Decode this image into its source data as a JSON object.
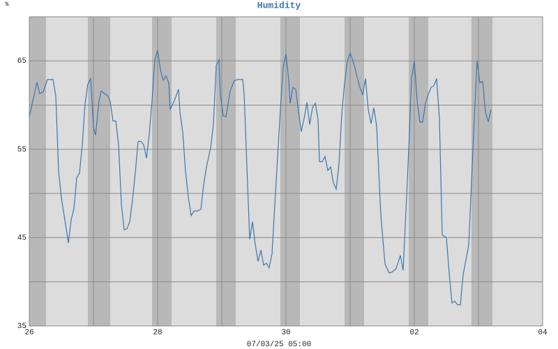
{
  "chart_data": {
    "type": "line",
    "title": "Humidity",
    "y_label": "%",
    "x_label": "07/03/25 05:00",
    "xlim": [
      0,
      8
    ],
    "xticks": [
      {
        "value": 0,
        "label": "26"
      },
      {
        "value": 2,
        "label": "28"
      },
      {
        "value": 4,
        "label": "30"
      },
      {
        "value": 6,
        "label": "02"
      },
      {
        "value": 8,
        "label": "04"
      }
    ],
    "minor_xticks": [
      1,
      3,
      5,
      7
    ],
    "ylim": [
      35,
      70
    ],
    "yticks": [
      35,
      45,
      55,
      65
    ],
    "minor_yticks": [
      40,
      50,
      60
    ],
    "grid": true,
    "background": "#dcdcdc",
    "shade_color": "#b8b8b8",
    "shaded_bands": [
      [
        0,
        0.26
      ],
      [
        0.913,
        1.26
      ],
      [
        1.913,
        2.217
      ],
      [
        2.913,
        3.217
      ],
      [
        3.913,
        4.217
      ],
      [
        4.913,
        5.217
      ],
      [
        5.913,
        6.217
      ],
      [
        6.891,
        7.217
      ]
    ],
    "series": [
      {
        "color": "#3a78b0",
        "x": [
          0,
          0.065,
          0.12,
          0.163,
          0.217,
          0.283,
          0.37,
          0.413,
          0.457,
          0.5,
          0.554,
          0.609,
          0.652,
          0.696,
          0.739,
          0.783,
          0.826,
          0.87,
          0.913,
          0.957,
          1,
          1.033,
          1.087,
          1.12,
          1.174,
          1.228,
          1.261,
          1.304,
          1.348,
          1.391,
          1.435,
          1.478,
          1.522,
          1.565,
          1.609,
          1.652,
          1.696,
          1.739,
          1.783,
          1.826,
          1.87,
          1.913,
          1.957,
          2,
          2.043,
          2.087,
          2.13,
          2.174,
          2.196,
          2.261,
          2.326,
          2.348,
          2.391,
          2.435,
          2.478,
          2.522,
          2.565,
          2.609,
          2.674,
          2.717,
          2.761,
          2.826,
          2.87,
          2.913,
          2.957,
          2.978,
          3.022,
          3.065,
          3.13,
          3.196,
          3.261,
          3.326,
          3.348,
          3.391,
          3.435,
          3.478,
          3.522,
          3.565,
          3.609,
          3.652,
          3.696,
          3.739,
          3.783,
          3.848,
          3.913,
          3.957,
          4,
          4.043,
          4.065,
          4.109,
          4.152,
          4.196,
          4.239,
          4.283,
          4.326,
          4.37,
          4.413,
          4.457,
          4.5,
          4.522,
          4.565,
          4.609,
          4.652,
          4.696,
          4.739,
          4.783,
          4.826,
          4.87,
          4.913,
          4.957,
          5,
          5.065,
          5.109,
          5.152,
          5.196,
          5.239,
          5.283,
          5.326,
          5.37,
          5.413,
          5.478,
          5.543,
          5.609,
          5.652,
          5.717,
          5.783,
          5.826,
          5.87,
          5.913,
          5.957,
          6,
          6.043,
          6.087,
          6.13,
          6.174,
          6.217,
          6.261,
          6.304,
          6.348,
          6.391,
          6.435,
          6.5,
          6.543,
          6.587,
          6.63,
          6.674,
          6.717,
          6.761,
          6.804,
          6.848,
          6.891,
          6.935,
          6.978,
          7.022,
          7.065,
          7.109,
          7.152,
          7.196
        ],
        "values": [
          58.7,
          60.8,
          62.6,
          61.3,
          61.5,
          62.9,
          62.9,
          61,
          52.5,
          49.5,
          47,
          44.4,
          47,
          48.3,
          51.8,
          52.3,
          55.5,
          60.2,
          62.4,
          63,
          57.5,
          56.6,
          60.5,
          61.6,
          61.3,
          61,
          60.4,
          58.2,
          58.2,
          55.5,
          48.8,
          45.9,
          46,
          46.8,
          49.3,
          52.4,
          55.9,
          55.9,
          55.5,
          54,
          56.7,
          60.5,
          65.1,
          66.2,
          64,
          62.8,
          63.3,
          62.5,
          59.5,
          60.5,
          61.8,
          59.2,
          56.9,
          52.5,
          49.6,
          47.5,
          48,
          48,
          48.2,
          51,
          53,
          55.2,
          57.8,
          64.5,
          65.1,
          61.2,
          58.8,
          58.7,
          61.6,
          62.8,
          62.9,
          62.9,
          61.3,
          53,
          44.8,
          46.8,
          44.2,
          42.3,
          43.6,
          41.9,
          42.1,
          41.6,
          43.2,
          51.5,
          59.5,
          64.3,
          65.8,
          62.8,
          60.2,
          62,
          61.8,
          59.2,
          57,
          58.5,
          60.3,
          57.8,
          59.7,
          60.2,
          58.4,
          53.6,
          53.6,
          54.2,
          52.6,
          53,
          51.2,
          50.5,
          53.3,
          59,
          62.5,
          65,
          65.9,
          64.5,
          63.2,
          62,
          61.2,
          63,
          59.5,
          57.9,
          59.7,
          57.6,
          47.5,
          42,
          41,
          41.1,
          41.5,
          43,
          41.3,
          48,
          55,
          63,
          65,
          60.5,
          58.1,
          58.1,
          60.2,
          61.2,
          62,
          62.2,
          63,
          58.5,
          45.3,
          45,
          41,
          37.6,
          37.8,
          37.4,
          37.4,
          40.8,
          42.5,
          44.2,
          51.3,
          58.5,
          65,
          62.5,
          62.7,
          59.2,
          58.1,
          59.5
        ]
      }
    ]
  }
}
